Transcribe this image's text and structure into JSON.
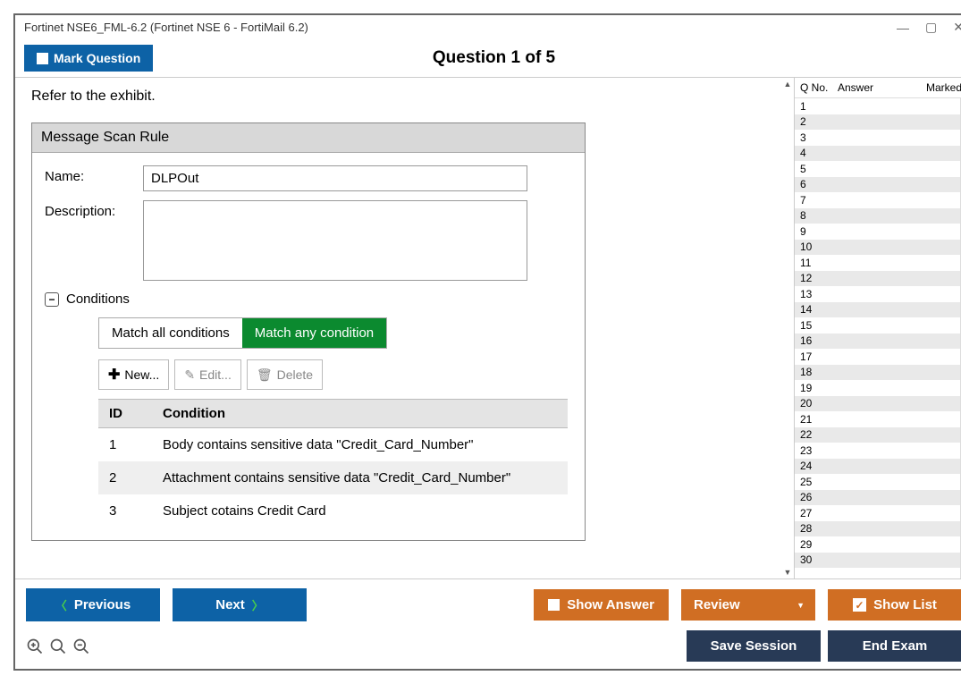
{
  "window": {
    "title": "Fortinet NSE6_FML-6.2 (Fortinet NSE 6 - FortiMail 6.2)"
  },
  "header": {
    "mark_label": "Mark Question",
    "title": "Question 1 of 5"
  },
  "question": {
    "instruction": "Refer to the exhibit."
  },
  "exhibit": {
    "panel_title": "Message Scan Rule",
    "name_label": "Name:",
    "name_value": "DLPOut",
    "desc_label": "Description:",
    "desc_value": "",
    "conditions_label": "Conditions",
    "tab_all": "Match all conditions",
    "tab_any": "Match any condition",
    "btn_new": "New...",
    "btn_edit": "Edit...",
    "btn_delete": "Delete",
    "col_id": "ID",
    "col_cond": "Condition",
    "rows": [
      {
        "id": "1",
        "cond": "Body contains sensitive data \"Credit_Card_Number\""
      },
      {
        "id": "2",
        "cond": "Attachment contains sensitive data \"Credit_Card_Number\""
      },
      {
        "id": "3",
        "cond": "Subject cotains Credit Card"
      }
    ]
  },
  "sidebar": {
    "col_q": "Q No.",
    "col_answer": "Answer",
    "col_marked": "Marked",
    "count": 30
  },
  "footer": {
    "previous": "Previous",
    "next": "Next",
    "show_answer": "Show Answer",
    "review": "Review",
    "show_list": "Show List",
    "save_session": "Save Session",
    "end_exam": "End Exam"
  },
  "colors": {
    "blue": "#0d62a6",
    "orange": "#d06e23",
    "dark": "#283a56",
    "green": "#0b8a2f"
  }
}
